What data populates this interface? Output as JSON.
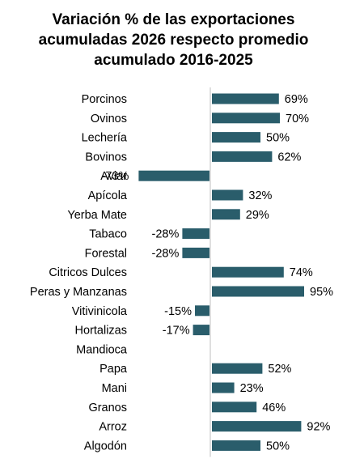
{
  "chart_data": {
    "type": "bar",
    "orientation": "horizontal",
    "title_lines": [
      "Variación % de las exportaciones",
      "acumuladas 2026 respecto promedio",
      "acumulado 2016-2025"
    ],
    "categories": [
      "Porcinos",
      "Ovinos",
      "Lechería",
      "Bovinos",
      "Aviar",
      "Apícola",
      "Yerba Mate",
      "Tabaco",
      "Forestal",
      "Citricos Dulces",
      "Peras y Manzanas",
      "Vitivinicola",
      "Hortalizas",
      "Mandioca",
      "Papa",
      "Mani",
      "Granos",
      "Arroz",
      "Algodón"
    ],
    "values": [
      69,
      70,
      50,
      62,
      -73,
      32,
      29,
      -28,
      -28,
      74,
      95,
      -15,
      -17,
      null,
      52,
      23,
      46,
      92,
      50
    ],
    "data_labels": [
      "69%",
      "70%",
      "50%",
      "62%",
      "-73%",
      "32%",
      "29%",
      "-28%",
      "-28%",
      "74%",
      "95%",
      "-15%",
      "-17%",
      "",
      "52%",
      "23%",
      "46%",
      "92%",
      "50%"
    ],
    "bar_color": "#2a5d6b",
    "xlim": [
      -75,
      100
    ],
    "grid": false,
    "legend": "none"
  }
}
